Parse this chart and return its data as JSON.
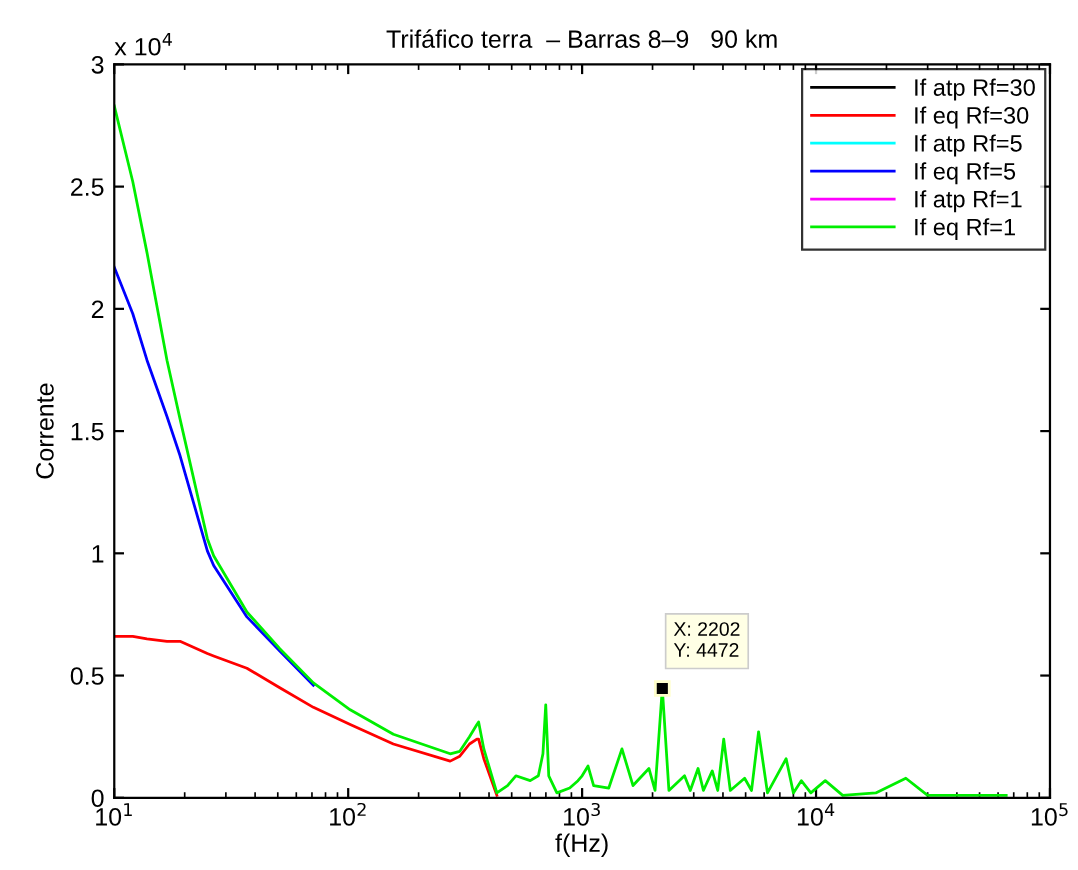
{
  "chart_data": {
    "type": "line",
    "title": "Trifáfico terra  – Barras 8–9   90 km",
    "xlabel": "f(Hz)",
    "ylabel": "Corrente",
    "log": "x",
    "grid": false,
    "legend": "top right",
    "line_style": "solid",
    "marker": "none",
    "x": [
      10,
      12,
      13.8,
      16.8,
      19.1,
      25,
      26.6,
      36.9,
      51,
      71,
      102,
      156,
      273,
      300,
      330,
      355,
      361,
      380,
      432,
      480,
      521,
      600,
      650,
      680,
      699,
      720,
      780,
      885,
      960,
      1000,
      1060,
      1120,
      1300,
      1480,
      1650,
      1930,
      2050,
      2202,
      2350,
      2740,
      2900,
      3130,
      3300,
      3600,
      3800,
      4030,
      4300,
      4950,
      5300,
      5680,
      6200,
      7450,
      8000,
      8650,
      9500,
      10950,
      13000,
      18000,
      24200,
      30000,
      45000,
      65000
    ],
    "series": [
      {
        "name": "If atp Rf=30",
        "color": "#000000",
        "values": [
          null,
          null,
          null,
          null,
          null,
          null,
          null,
          null,
          null,
          null,
          null,
          null,
          null,
          null,
          null,
          null,
          null,
          null,
          null,
          null,
          null,
          null,
          null,
          null,
          null,
          null,
          null,
          null,
          null,
          null,
          null,
          null,
          null,
          null,
          null,
          null,
          null,
          null,
          null,
          null,
          null,
          null,
          null,
          null,
          null,
          null,
          null,
          null,
          null,
          null,
          null,
          null,
          null,
          null,
          null,
          null,
          null,
          null,
          null,
          null,
          null,
          null
        ]
      },
      {
        "name": "If eq Rf=30",
        "color": "#ff0000",
        "values": [
          0.66,
          0.66,
          0.65,
          0.64,
          0.64,
          0.59,
          0.58,
          0.53,
          0.45,
          0.37,
          0.3,
          0.22,
          0.15,
          0.17,
          0.22,
          0.24,
          0.24,
          0.16,
          0.01,
          null,
          null,
          null,
          null,
          null,
          null,
          null,
          null,
          null,
          null,
          null,
          null,
          null,
          null,
          null,
          null,
          null,
          null,
          null,
          null,
          null,
          null,
          null,
          null,
          null,
          null,
          null,
          null,
          null,
          null,
          null,
          null,
          null,
          null,
          null,
          null,
          null,
          null,
          null,
          null,
          null,
          null,
          null
        ]
      },
      {
        "name": "If atp Rf=5",
        "color": "#00ffff",
        "values": [
          null,
          null,
          null,
          null,
          null,
          null,
          null,
          null,
          null,
          null,
          null,
          null,
          null,
          null,
          null,
          null,
          null,
          null,
          null,
          null,
          null,
          null,
          null,
          null,
          null,
          null,
          null,
          null,
          null,
          null,
          null,
          null,
          null,
          null,
          null,
          null,
          null,
          null,
          null,
          null,
          null,
          null,
          null,
          null,
          null,
          null,
          null,
          null,
          null,
          null,
          null,
          null,
          null,
          null,
          null,
          null,
          null,
          null,
          null,
          null,
          null,
          null
        ]
      },
      {
        "name": "If eq Rf=5",
        "color": "#0000ff",
        "values": [
          2.17,
          1.98,
          1.79,
          1.56,
          1.4,
          1.01,
          0.95,
          0.74,
          0.6,
          0.46,
          null,
          null,
          null,
          null,
          null,
          null,
          null,
          null,
          null,
          null,
          null,
          null,
          null,
          null,
          null,
          null,
          null,
          null,
          null,
          null,
          null,
          null,
          null,
          null,
          null,
          null,
          null,
          null,
          null,
          null,
          null,
          null,
          null,
          null,
          null,
          null,
          null,
          null,
          null,
          null,
          null,
          null,
          null,
          null,
          null,
          null,
          null,
          null,
          null,
          null,
          null,
          null
        ]
      },
      {
        "name": "If atp Rf=1",
        "color": "#ff00ff",
        "values": [
          null,
          null,
          null,
          null,
          null,
          null,
          null,
          null,
          null,
          null,
          null,
          null,
          null,
          null,
          null,
          null,
          null,
          null,
          null,
          null,
          null,
          null,
          null,
          null,
          null,
          null,
          null,
          null,
          null,
          null,
          null,
          null,
          null,
          null,
          null,
          null,
          null,
          null,
          null,
          null,
          null,
          null,
          null,
          null,
          null,
          null,
          null,
          null,
          null,
          null,
          null,
          null,
          null,
          null,
          null,
          null,
          null,
          null,
          null,
          null,
          null,
          null
        ]
      },
      {
        "name": "If eq Rf=1",
        "color": "#00ee00",
        "values": [
          2.83,
          2.52,
          2.23,
          1.79,
          1.55,
          1.06,
          0.99,
          0.76,
          0.61,
          0.47,
          0.36,
          0.26,
          0.18,
          0.19,
          0.25,
          0.3,
          0.31,
          0.2,
          0.02,
          0.05,
          0.09,
          0.07,
          0.09,
          0.18,
          0.38,
          0.09,
          0.02,
          0.04,
          0.07,
          0.09,
          0.13,
          0.05,
          0.04,
          0.2,
          0.05,
          0.12,
          0.03,
          0.4472,
          0.03,
          0.09,
          0.03,
          0.12,
          0.03,
          0.11,
          0.03,
          0.24,
          0.03,
          0.08,
          0.03,
          0.27,
          0.02,
          0.16,
          0.02,
          0.07,
          0.02,
          0.07,
          0.01,
          0.02,
          0.08,
          0.01,
          0.01,
          0.01
        ]
      }
    ],
    "xlim": [
      10,
      100000
    ],
    "xticks": [
      {
        "value": 10,
        "label": "10$^{1}$"
      },
      {
        "value": 100,
        "label": "10$^{2}$"
      },
      {
        "value": 1000,
        "label": "10$^{3}$"
      },
      {
        "value": 10000,
        "label": "10$^{4}$"
      },
      {
        "value": 100000,
        "label": "10$^{5}$"
      }
    ],
    "ylim": [
      0,
      3
    ],
    "yticks": [
      0,
      0.5,
      1,
      1.5,
      2,
      2.5,
      3
    ],
    "annotations": [
      "x 10$^{4}$",
      {
        "text": "X: 2202\nY: 4472",
        "x": 2202,
        "y": 0.4472
      }
    ]
  }
}
